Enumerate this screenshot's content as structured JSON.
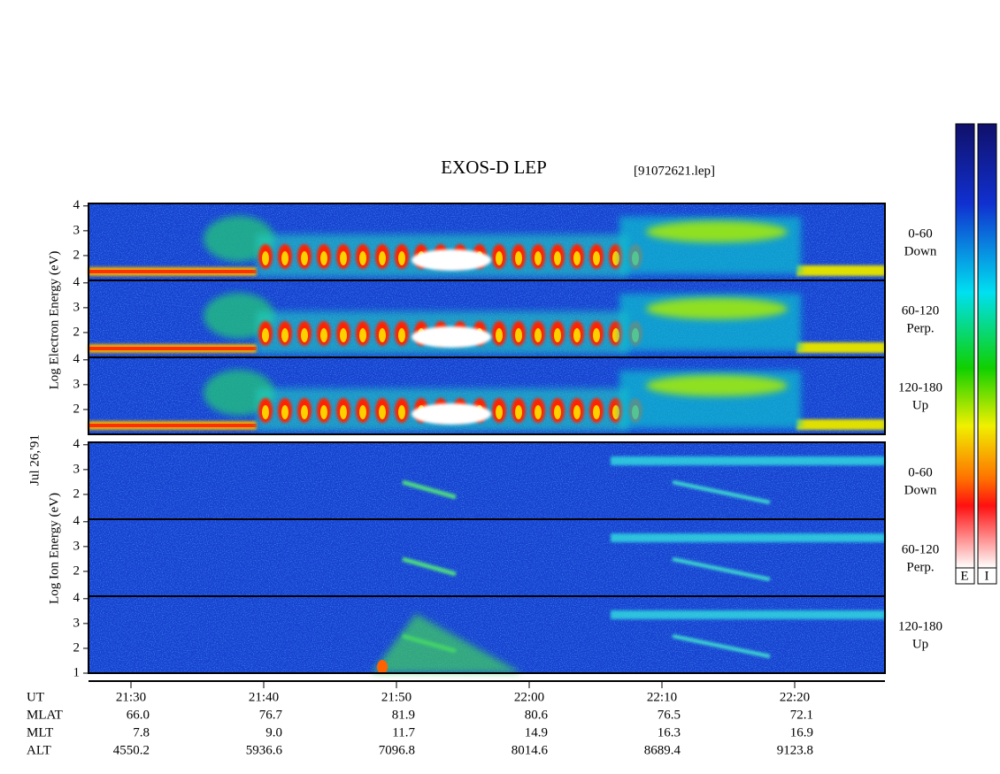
{
  "chart_data": {
    "type": "spectrogram",
    "title": "EXOS-D LEP",
    "subtitle": "[91072621.lep]",
    "date_label": "Jul 26,'91",
    "electron_ylabel": "Log  Electron  Energy (eV)",
    "ion_ylabel": "Log  Ion  Energy (eV)",
    "panels": [
      {
        "species": "electron",
        "angle": "0-60",
        "direction": "Down",
        "ylim": [
          1,
          4.1
        ],
        "yticks": [
          2,
          3,
          4
        ]
      },
      {
        "species": "electron",
        "angle": "60-120",
        "direction": "Perp.",
        "ylim": [
          1,
          4.1
        ],
        "yticks": [
          2,
          3,
          4
        ]
      },
      {
        "species": "electron",
        "angle": "120-180",
        "direction": "Up",
        "ylim": [
          1,
          4.1
        ],
        "yticks": [
          2,
          3,
          4
        ]
      },
      {
        "species": "ion",
        "angle": "0-60",
        "direction": "Down",
        "ylim": [
          1,
          4.1
        ],
        "yticks": [
          2,
          3,
          4
        ]
      },
      {
        "species": "ion",
        "angle": "60-120",
        "direction": "Perp.",
        "ylim": [
          1,
          4.1
        ],
        "yticks": [
          2,
          3,
          4
        ]
      },
      {
        "species": "ion",
        "angle": "120-180",
        "direction": "Up",
        "ylim": [
          1,
          4.1
        ],
        "yticks": [
          1,
          2,
          3,
          4
        ]
      }
    ],
    "colorbar_labels": [
      "E",
      "I"
    ],
    "rows": [
      {
        "name": "UT",
        "values": [
          "21:30",
          "21:40",
          "21:50",
          "22:00",
          "22:10",
          "22:20"
        ]
      },
      {
        "name": "MLAT",
        "values": [
          "66.0",
          "76.7",
          "81.9",
          "80.6",
          "76.5",
          "72.1"
        ]
      },
      {
        "name": "MLT",
        "values": [
          "7.8",
          "9.0",
          "11.7",
          "14.9",
          "16.3",
          "16.9"
        ]
      },
      {
        "name": "ALT",
        "values": [
          "4550.2",
          "5936.6",
          "7096.8",
          "8014.6",
          "8689.4",
          "9123.8"
        ]
      }
    ]
  }
}
